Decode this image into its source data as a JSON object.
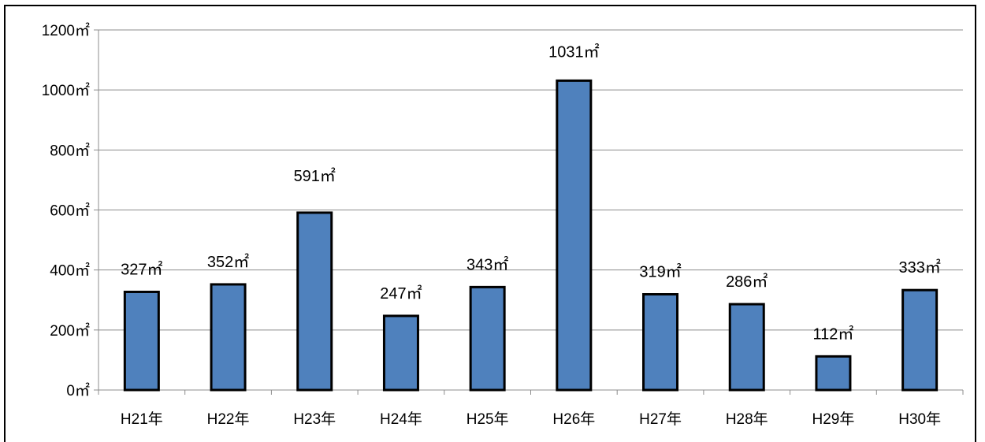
{
  "chart_data": {
    "type": "bar",
    "categories": [
      "H21年",
      "H22年",
      "H23年",
      "H24年",
      "H25年",
      "H26年",
      "H27年",
      "H28年",
      "H29年",
      "H30年"
    ],
    "values": [
      327,
      352,
      591,
      247,
      343,
      1031,
      319,
      286,
      112,
      333
    ],
    "data_labels": [
      "327㎡",
      "352㎡",
      "591㎡",
      "247㎡",
      "343㎡",
      "1031㎡",
      "319㎡",
      "286㎡",
      "112㎡",
      "333㎡"
    ],
    "y_ticks": [
      0,
      200,
      400,
      600,
      800,
      1000,
      1200
    ],
    "y_tick_labels": [
      "0㎡",
      "200㎡",
      "400㎡",
      "600㎡",
      "800㎡",
      "1000㎡",
      "1200㎡"
    ],
    "ylim": [
      0,
      1200
    ],
    "grid": true,
    "bar_color": "#4f81bd",
    "bar_outline_color": "#000000"
  }
}
